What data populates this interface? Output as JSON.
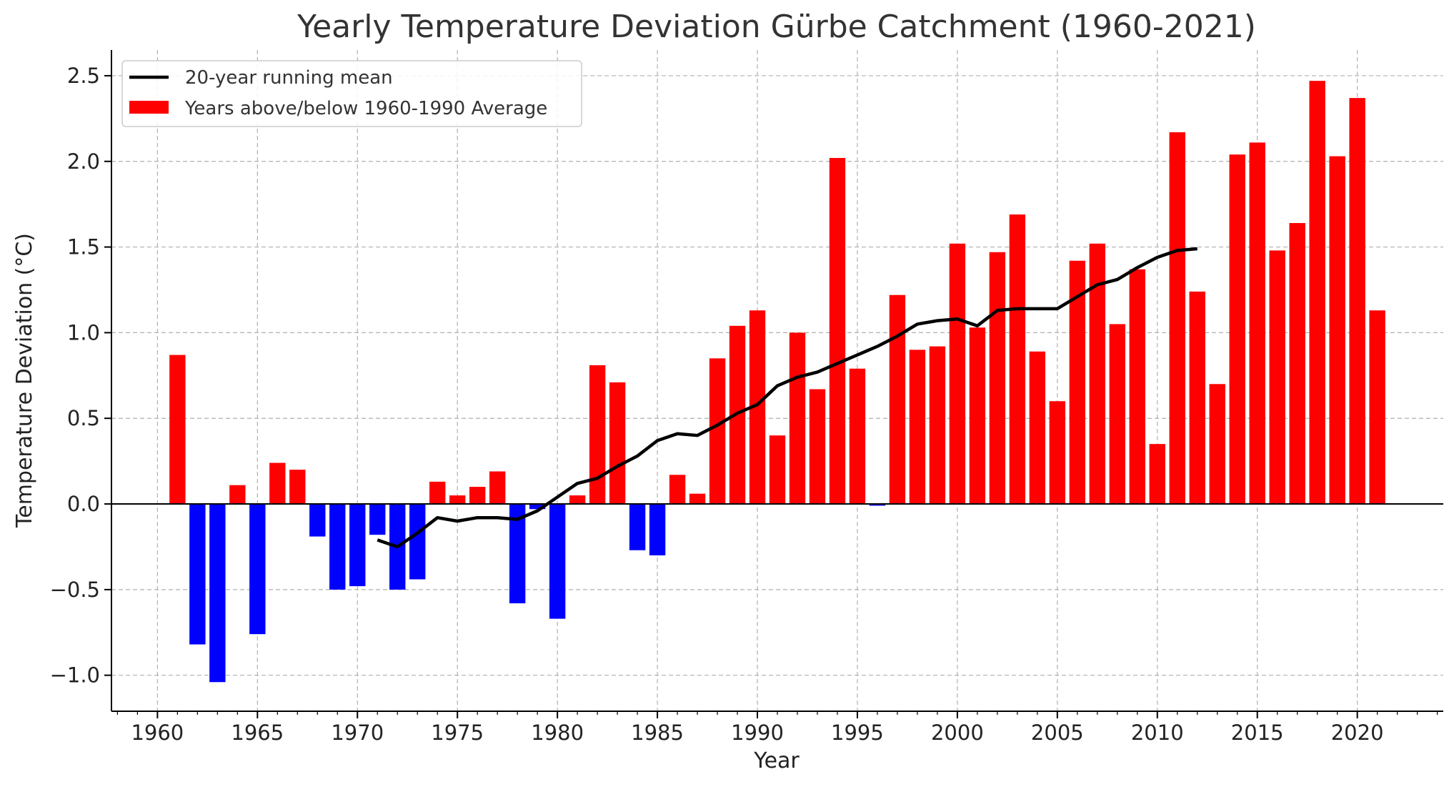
{
  "chart_data": {
    "type": "bar",
    "title": "Yearly Temperature Deviation Gürbe Catchment (1960-2021)",
    "xlabel": "Year",
    "ylabel": "Temperature Deviation (°C)",
    "xlim": [
      1957.7,
      2024.3
    ],
    "ylim": [
      -1.21,
      2.65
    ],
    "x_ticks": [
      1960,
      1965,
      1970,
      1975,
      1980,
      1985,
      1990,
      1995,
      2000,
      2005,
      2010,
      2015,
      2020
    ],
    "y_ticks": [
      -1.0,
      -0.5,
      0.0,
      0.5,
      1.0,
      1.5,
      2.0,
      2.5
    ],
    "y_tick_labels": [
      "−1.0",
      "−0.5",
      "0.0",
      "0.5",
      "1.0",
      "1.5",
      "2.0",
      "2.5"
    ],
    "grid": true,
    "legend_position": "top-left",
    "colors": {
      "above": "#ff0000",
      "below": "#0000ff",
      "line": "#000000"
    },
    "series": [
      {
        "name": "Years above/below 1960-1990 Average",
        "kind": "bar",
        "x": [
          1961,
          1962,
          1963,
          1964,
          1965,
          1966,
          1967,
          1968,
          1969,
          1970,
          1971,
          1972,
          1973,
          1974,
          1975,
          1976,
          1977,
          1978,
          1979,
          1980,
          1981,
          1982,
          1983,
          1984,
          1985,
          1986,
          1987,
          1988,
          1989,
          1990,
          1991,
          1992,
          1993,
          1994,
          1995,
          1996,
          1997,
          1998,
          1999,
          2000,
          2001,
          2002,
          2003,
          2004,
          2005,
          2006,
          2007,
          2008,
          2009,
          2010,
          2011,
          2012,
          2013,
          2014,
          2015,
          2016,
          2017,
          2018,
          2019,
          2020,
          2021
        ],
        "values": [
          0.87,
          -0.82,
          -1.04,
          0.11,
          -0.76,
          0.24,
          0.2,
          -0.19,
          -0.5,
          -0.48,
          -0.18,
          -0.5,
          -0.44,
          0.13,
          0.05,
          0.1,
          0.19,
          -0.58,
          -0.03,
          -0.67,
          0.05,
          0.81,
          0.71,
          -0.27,
          -0.3,
          0.17,
          0.06,
          0.85,
          1.04,
          1.13,
          0.4,
          1.0,
          0.67,
          2.02,
          0.79,
          -0.01,
          1.22,
          0.9,
          0.92,
          1.52,
          1.03,
          1.47,
          1.69,
          0.89,
          0.6,
          1.42,
          1.52,
          1.05,
          1.37,
          0.35,
          2.17,
          1.24,
          0.7,
          2.04,
          2.11,
          1.48,
          1.64,
          2.47,
          2.03,
          2.37,
          1.13
        ]
      },
      {
        "name": "20-year running mean",
        "kind": "line",
        "x": [
          1971,
          1972,
          1973,
          1974,
          1975,
          1976,
          1977,
          1978,
          1979,
          1980,
          1981,
          1982,
          1983,
          1984,
          1985,
          1986,
          1987,
          1988,
          1989,
          1990,
          1991,
          1992,
          1993,
          1994,
          1995,
          1996,
          1997,
          1998,
          1999,
          2000,
          2001,
          2002,
          2003,
          2004,
          2005,
          2006,
          2007,
          2008,
          2009,
          2010,
          2011,
          2012
        ],
        "values": [
          -0.21,
          -0.25,
          -0.17,
          -0.08,
          -0.1,
          -0.08,
          -0.08,
          -0.09,
          -0.04,
          0.04,
          0.12,
          0.15,
          0.22,
          0.28,
          0.37,
          0.41,
          0.4,
          0.46,
          0.53,
          0.58,
          0.69,
          0.74,
          0.77,
          0.82,
          0.87,
          0.92,
          0.98,
          1.05,
          1.07,
          1.08,
          1.04,
          1.13,
          1.14,
          1.14,
          1.14,
          1.21,
          1.28,
          1.31,
          1.38,
          1.44,
          1.48,
          1.49
        ]
      }
    ]
  }
}
